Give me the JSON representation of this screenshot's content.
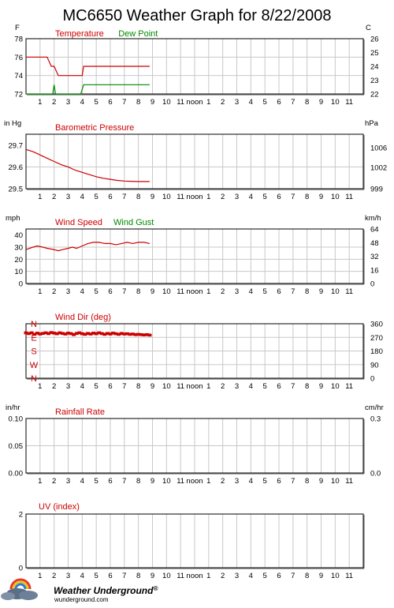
{
  "page": {
    "title": "MC6650 Weather Graph for 8/22/2008",
    "logo": {
      "name": "Weather Underground",
      "trademark": "®",
      "url": "wunderground.com"
    }
  },
  "x_tick_labels": [
    "1",
    "2",
    "3",
    "4",
    "5",
    "6",
    "7",
    "8",
    "9",
    "10",
    "11",
    "noon",
    "1",
    "2",
    "3",
    "4",
    "5",
    "6",
    "7",
    "8",
    "9",
    "10",
    "11"
  ],
  "colors": {
    "red": "#cc0000",
    "green": "#008800",
    "grid": "#c8c8c8",
    "frame": "#000000"
  },
  "chart_data": [
    {
      "type": "line",
      "title": "Temperature",
      "left_unit": "F",
      "right_unit": "C",
      "ylim": [
        72,
        78
      ],
      "y_ticks": [
        "72",
        "74",
        "76",
        "78"
      ],
      "right_ticks": [
        "22",
        "23",
        "24",
        "25",
        "26"
      ],
      "x_unit": "hours after midnight",
      "xlim": [
        0,
        24
      ],
      "series": [
        {
          "name": "Temperature",
          "color": "#cc0000",
          "x": [
            0,
            1.5,
            1.8,
            2.0,
            2.3,
            3.5,
            4.0,
            4.1,
            8.8
          ],
          "y": [
            76,
            76,
            75,
            75,
            74,
            74,
            74,
            75,
            75
          ]
        },
        {
          "name": "Dew Point",
          "color": "#008800",
          "x": [
            0,
            1.9,
            2.0,
            2.1,
            3.9,
            4.1,
            8.8
          ],
          "y": [
            72,
            72,
            73,
            72,
            72,
            73,
            73
          ]
        }
      ]
    },
    {
      "type": "line",
      "title": "Barometric Pressure",
      "left_unit": "in Hg",
      "right_unit": "hPa",
      "ylim": [
        29.5,
        29.75
      ],
      "y_ticks": [
        "29.5",
        "29.6",
        "29.7"
      ],
      "right_ticks": [
        "999",
        "1002",
        "1006"
      ],
      "x_unit": "hours after midnight",
      "xlim": [
        0,
        24
      ],
      "series": [
        {
          "name": "Barometric Pressure",
          "color": "#cc0000",
          "x": [
            0,
            0.5,
            1,
            1.5,
            2,
            2.5,
            3,
            3.5,
            4,
            4.5,
            5,
            5.5,
            6,
            6.5,
            7,
            7.5,
            8,
            8.8
          ],
          "y": [
            29.68,
            29.67,
            29.655,
            29.64,
            29.625,
            29.61,
            29.6,
            29.585,
            29.575,
            29.565,
            29.555,
            29.548,
            29.543,
            29.538,
            29.535,
            29.534,
            29.533,
            29.533
          ]
        }
      ]
    },
    {
      "type": "line",
      "title": "Wind Speed / Wind Gust",
      "left_unit": "mph",
      "right_unit": "km/h",
      "ylim": [
        0,
        45
      ],
      "y_ticks": [
        "0",
        "10",
        "20",
        "30",
        "40"
      ],
      "right_ticks": [
        "0",
        "16",
        "32",
        "48",
        "64"
      ],
      "x_unit": "hours after midnight",
      "xlim": [
        0,
        24
      ],
      "series": [
        {
          "name": "Wind Speed",
          "color": "#cc0000",
          "x": [
            0,
            0.5,
            0.8,
            1.2,
            1.5,
            2,
            2.3,
            2.6,
            3,
            3.3,
            3.6,
            4,
            4.4,
            4.8,
            5.2,
            5.6,
            6,
            6.4,
            6.8,
            7.2,
            7.6,
            8,
            8.4,
            8.8
          ],
          "y": [
            28,
            30,
            31,
            30,
            29,
            28,
            27,
            28,
            29,
            30,
            29,
            31,
            33,
            34,
            34,
            33,
            33,
            32,
            33,
            34,
            33,
            34,
            34,
            33
          ]
        },
        {
          "name": "Wind Gust",
          "color": "#008800",
          "x": [],
          "y": []
        }
      ]
    },
    {
      "type": "scatter",
      "title": "Wind Dir (deg)",
      "left_labels": [
        "N",
        "W",
        "S",
        "E",
        "N"
      ],
      "right_ticks": [
        "0",
        "90",
        "180",
        "270",
        "360"
      ],
      "ylim": [
        0,
        360
      ],
      "x_unit": "hours after midnight",
      "xlim": [
        0,
        24
      ],
      "series": [
        {
          "name": "Wind Dir (deg)",
          "color": "#cc0000",
          "x": [
            0,
            0.2,
            0.4,
            0.6,
            0.8,
            1,
            1.2,
            1.4,
            1.6,
            1.8,
            2,
            2.2,
            2.4,
            2.6,
            2.8,
            3,
            3.2,
            3.4,
            3.6,
            3.8,
            4,
            4.2,
            4.4,
            4.6,
            4.8,
            5,
            5.2,
            5.4,
            5.6,
            5.8,
            6,
            6.2,
            6.4,
            6.6,
            6.8,
            7,
            7.2,
            7.4,
            7.6,
            7.8,
            8,
            8.2,
            8.4,
            8.6,
            8.8
          ],
          "y": [
            300,
            295,
            300,
            290,
            298,
            292,
            296,
            300,
            295,
            302,
            298,
            294,
            300,
            296,
            292,
            298,
            295,
            288,
            296,
            300,
            294,
            290,
            296,
            292,
            298,
            294,
            300,
            295,
            290,
            296,
            292,
            298,
            294,
            290,
            296,
            292,
            294,
            290,
            292,
            288,
            290,
            288,
            286,
            288,
            285
          ]
        }
      ]
    },
    {
      "type": "line",
      "title": "Rainfall Rate",
      "left_unit": "in/hr",
      "right_unit": "cm/hr",
      "ylim": [
        0,
        0.1
      ],
      "y_ticks": [
        "0.00",
        "0.05",
        "0.10"
      ],
      "right_ticks": [
        "0.0",
        "0.3"
      ],
      "series": []
    },
    {
      "type": "line",
      "title": "UV (index)",
      "ylim": [
        0,
        2
      ],
      "y_ticks": [
        "0",
        "2"
      ],
      "series": []
    }
  ]
}
